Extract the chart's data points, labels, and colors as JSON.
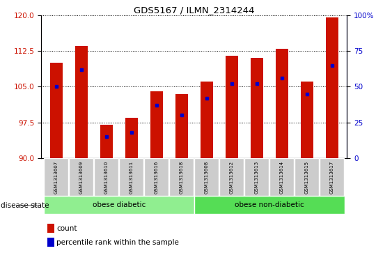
{
  "title": "GDS5167 / ILMN_2314244",
  "samples": [
    "GSM1313607",
    "GSM1313609",
    "GSM1313610",
    "GSM1313611",
    "GSM1313616",
    "GSM1313618",
    "GSM1313608",
    "GSM1313612",
    "GSM1313613",
    "GSM1313614",
    "GSM1313615",
    "GSM1313617"
  ],
  "counts": [
    110.0,
    113.5,
    97.0,
    98.5,
    104.0,
    103.5,
    106.0,
    111.5,
    111.0,
    113.0,
    106.0,
    119.5
  ],
  "percentile_ranks": [
    50,
    62,
    15,
    18,
    37,
    30,
    42,
    52,
    52,
    56,
    45,
    65
  ],
  "bar_bottom": 90,
  "ylim_left": [
    90,
    120
  ],
  "ylim_right": [
    0,
    100
  ],
  "yticks_left": [
    90,
    97.5,
    105,
    112.5,
    120
  ],
  "yticks_right": [
    0,
    25,
    50,
    75,
    100
  ],
  "bar_color": "#cc1100",
  "dot_color": "#0000cc",
  "bar_width": 0.5,
  "groups": [
    {
      "label": "obese diabetic",
      "start": 0,
      "end": 6,
      "color": "#90ee90"
    },
    {
      "label": "obese non-diabetic",
      "start": 6,
      "end": 12,
      "color": "#55dd55"
    }
  ],
  "disease_label": "disease state",
  "legend_count": "count",
  "legend_pct": "percentile rank within the sample",
  "axis_color_left": "#cc1100",
  "axis_color_right": "#0000cc",
  "tick_label_bg": "#cccccc"
}
